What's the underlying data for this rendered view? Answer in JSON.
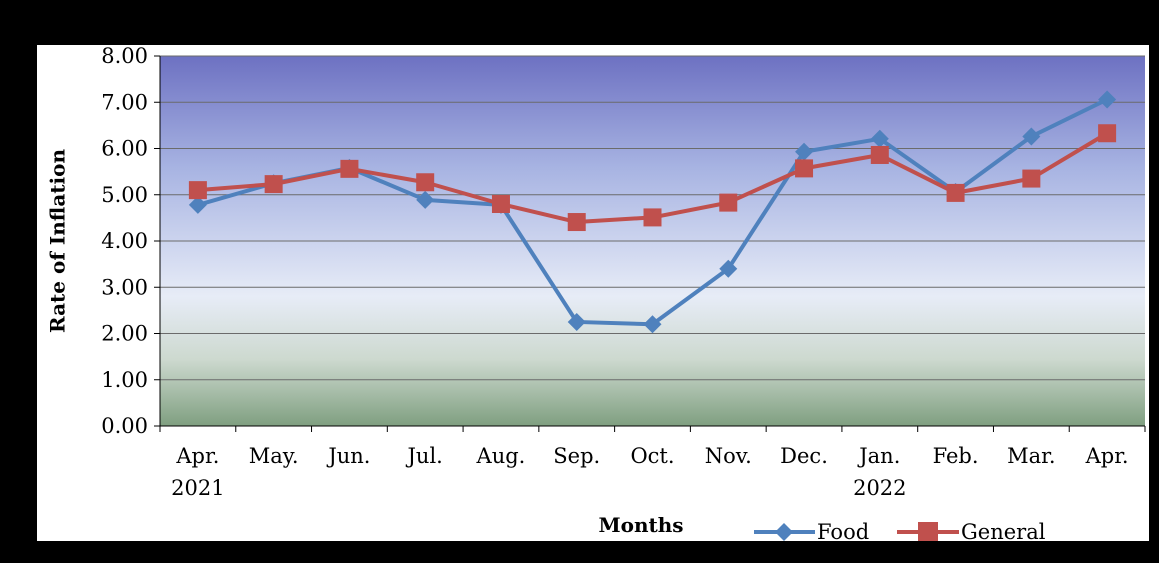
{
  "chart_data": {
    "type": "line",
    "title": "",
    "xlabel": "Months",
    "ylabel": "Rate of Inflation",
    "ylim": [
      0,
      8
    ],
    "y_ticks": [
      "0.00",
      "1.00",
      "2.00",
      "3.00",
      "4.00",
      "5.00",
      "6.00",
      "7.00",
      "8.00"
    ],
    "categories": [
      [
        "Apr.",
        "2021"
      ],
      [
        "May.",
        ""
      ],
      [
        "Jun.",
        ""
      ],
      [
        "Jul.",
        ""
      ],
      [
        "Aug.",
        ""
      ],
      [
        "Sep.",
        ""
      ],
      [
        "Oct.",
        ""
      ],
      [
        "Nov.",
        ""
      ],
      [
        "Dec.",
        ""
      ],
      [
        "Jan.",
        "2022"
      ],
      [
        "Feb.",
        ""
      ],
      [
        "Mar.",
        ""
      ],
      [
        "Apr.",
        ""
      ]
    ],
    "series": [
      {
        "name": "Food",
        "color": "#4f81bd",
        "marker": "diamond",
        "values": [
          4.78,
          5.25,
          5.58,
          4.89,
          4.78,
          2.25,
          2.2,
          3.4,
          5.93,
          6.21,
          5.06,
          6.26,
          7.06
        ]
      },
      {
        "name": "General",
        "color": "#c0504d",
        "marker": "square",
        "values": [
          5.1,
          5.23,
          5.56,
          5.27,
          4.8,
          4.41,
          4.51,
          4.83,
          5.57,
          5.86,
          5.04,
          5.35,
          6.33
        ]
      }
    ],
    "grid": true,
    "legend_position": "bottom-right",
    "background_gradient": [
      "#6f73c4",
      "#e6ebf5",
      "#8da58d"
    ]
  }
}
